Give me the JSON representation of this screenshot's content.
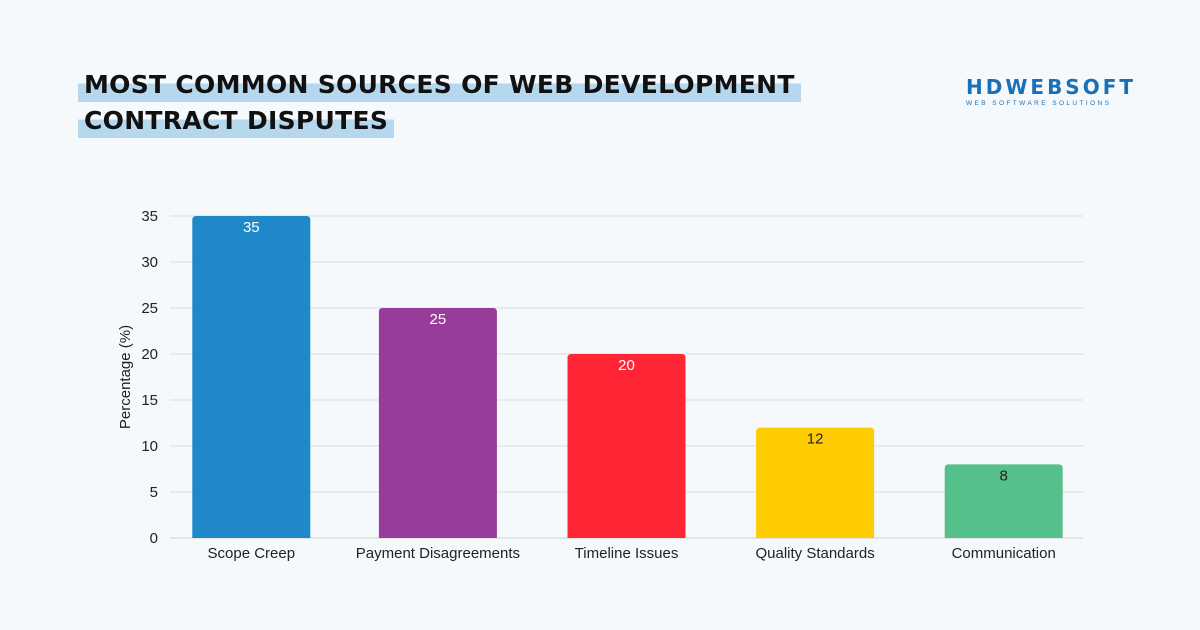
{
  "title": {
    "line1": "MOST COMMON SOURCES OF WEB DEVELOPMENT",
    "line2": "CONTRACT DISPUTES"
  },
  "logo": {
    "text": "HDWEBSOFT",
    "tagline": "WEB SOFTWARE SOLUTIONS",
    "color": "#1a6fb5"
  },
  "chart_data": {
    "type": "bar",
    "categories": [
      "Scope Creep",
      "Payment Disagreements",
      "Timeline Issues",
      "Quality Standards",
      "Communication"
    ],
    "values": [
      35,
      25,
      20,
      12,
      8
    ],
    "colors": [
      "#1e88c9",
      "#973c9b",
      "#ff2535",
      "#ffcc00",
      "#56c08a"
    ],
    "value_label_colors": [
      "#ffffff",
      "#ffffff",
      "#ffffff",
      "#222222",
      "#222222"
    ],
    "xlabel": "",
    "ylabel": "Percentage (%)",
    "ylim": [
      0,
      35
    ],
    "yticks": [
      0,
      5,
      10,
      15,
      20,
      25,
      30,
      35
    ],
    "grid": true,
    "legend": "none"
  }
}
